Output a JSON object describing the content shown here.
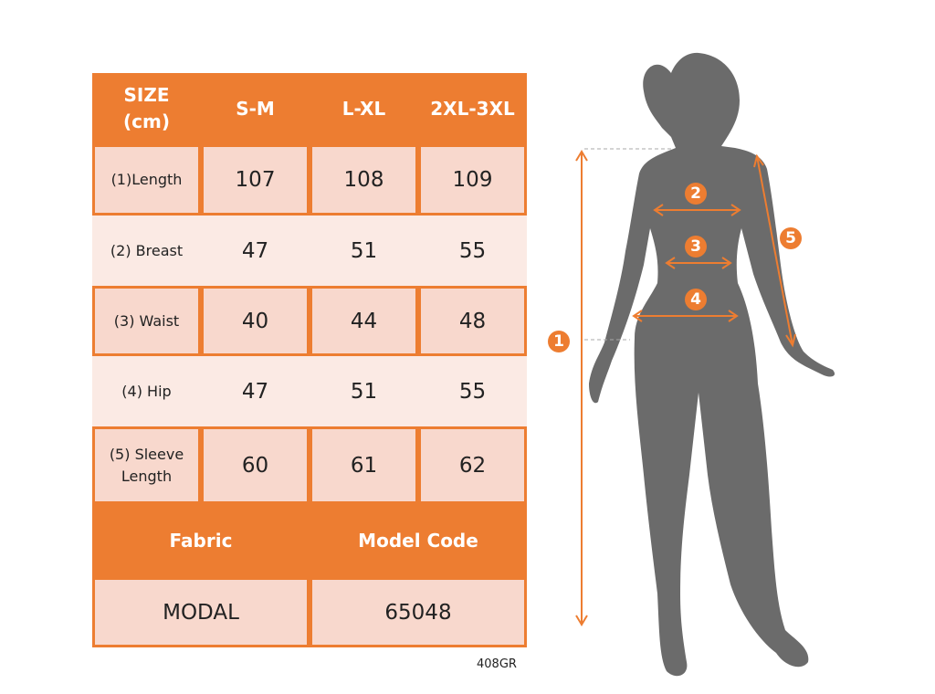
{
  "table": {
    "header": [
      "SIZE\n(cm)",
      "S-M",
      "L-XL",
      "2XL-3XL"
    ],
    "rows": [
      {
        "label": "(1)Length",
        "values": [
          "107",
          "108",
          "109"
        ]
      },
      {
        "label": "(2) Breast",
        "values": [
          "47",
          "51",
          "55"
        ]
      },
      {
        "label": "(3) Waist",
        "values": [
          "40",
          "44",
          "48"
        ]
      },
      {
        "label": "(4) Hip",
        "values": [
          "47",
          "51",
          "55"
        ]
      },
      {
        "label": "(5) Sleeve Length",
        "values": [
          "60",
          "61",
          "62"
        ]
      }
    ],
    "fabric_label": "Fabric",
    "model_code_label": "Model Code",
    "fabric_value": "MODAL",
    "model_code_value": "65048"
  },
  "code": "408GR",
  "markers": [
    "1",
    "2",
    "3",
    "4",
    "5"
  ],
  "colors": {
    "accent": "#ED7D31",
    "cell_dark": "#F8D8CD",
    "cell_light": "#FBEAE4",
    "silhouette": "#6B6B6B"
  }
}
